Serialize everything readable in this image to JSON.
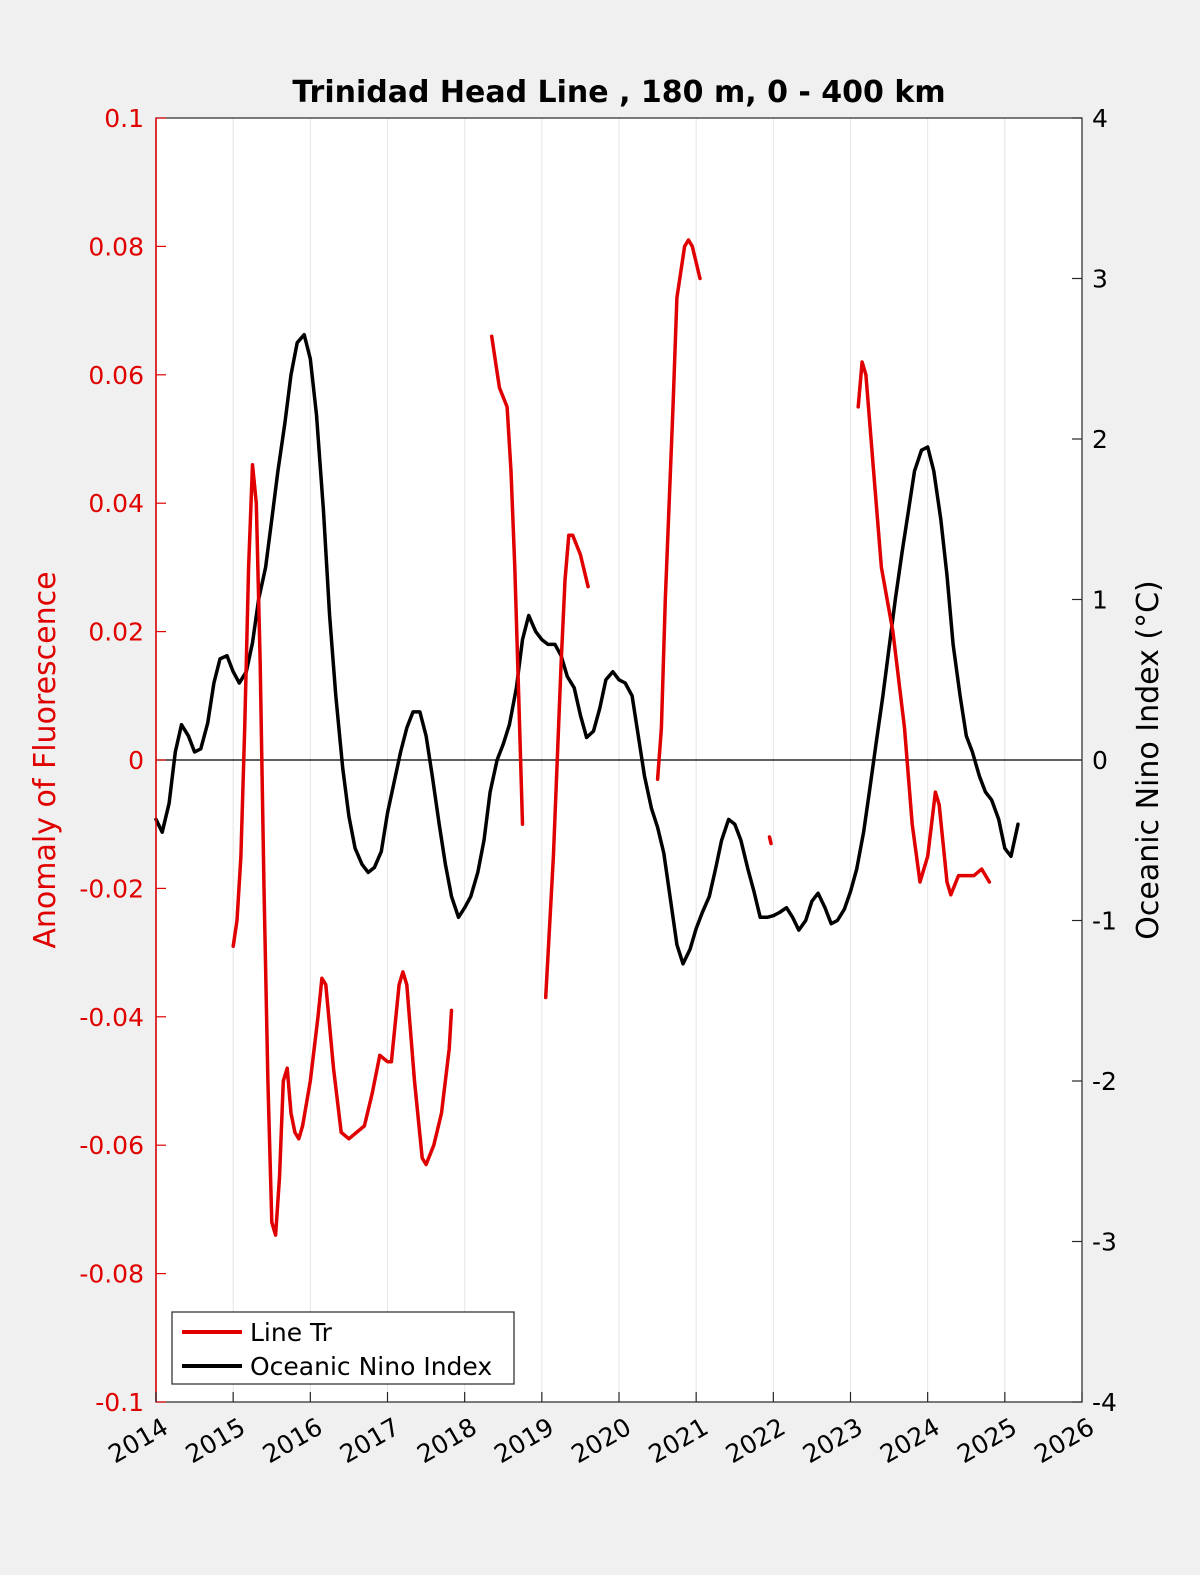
{
  "chart_data": {
    "type": "line",
    "title": "Trinidad Head Line , 180 m, 0 - 400 km",
    "ylabel_left": "Anomaly of Fluorescence",
    "ylabel_right": "Oceanic Nino Index (°C)",
    "xlim": [
      2014,
      2026
    ],
    "ylim_left": [
      -0.1,
      0.1
    ],
    "ylim_right": [
      -4,
      4
    ],
    "x_ticks": [
      "2014",
      "2015",
      "2016",
      "2017",
      "2018",
      "2019",
      "2020",
      "2021",
      "2022",
      "2023",
      "2024",
      "2025",
      "2026"
    ],
    "y_left_ticks": [
      "0.1",
      "0.08",
      "0.06",
      "0.04",
      "0.02",
      "0",
      "-0.02",
      "-0.04",
      "-0.06",
      "-0.08",
      "-0.1"
    ],
    "y_right_ticks": [
      "4",
      "3",
      "2",
      "1",
      "0",
      "-1",
      "-2",
      "-3",
      "-4"
    ],
    "grid": "x-only",
    "legend_position": "bottom-left",
    "colors": {
      "line_tr": "#e00000",
      "oni": "#000000",
      "axis_left": "#e00000"
    },
    "series": [
      {
        "name": "Line Tr",
        "axis": "left",
        "color": "#e00000",
        "segments": [
          [
            [
              2015.0,
              -0.029
            ],
            [
              2015.05,
              -0.025
            ],
            [
              2015.1,
              -0.015
            ],
            [
              2015.15,
              0.005
            ],
            [
              2015.2,
              0.03
            ],
            [
              2015.25,
              0.046
            ],
            [
              2015.3,
              0.04
            ],
            [
              2015.35,
              0.015
            ],
            [
              2015.4,
              -0.02
            ],
            [
              2015.45,
              -0.05
            ],
            [
              2015.5,
              -0.072
            ],
            [
              2015.55,
              -0.074
            ],
            [
              2015.6,
              -0.065
            ],
            [
              2015.65,
              -0.05
            ],
            [
              2015.7,
              -0.048
            ],
            [
              2015.75,
              -0.055
            ],
            [
              2015.8,
              -0.058
            ],
            [
              2015.85,
              -0.059
            ],
            [
              2015.9,
              -0.057
            ],
            [
              2016.0,
              -0.05
            ],
            [
              2016.1,
              -0.04
            ],
            [
              2016.15,
              -0.034
            ],
            [
              2016.2,
              -0.035
            ],
            [
              2016.3,
              -0.048
            ],
            [
              2016.4,
              -0.058
            ],
            [
              2016.5,
              -0.059
            ],
            [
              2016.6,
              -0.058
            ],
            [
              2016.7,
              -0.057
            ],
            [
              2016.8,
              -0.052
            ],
            [
              2016.9,
              -0.046
            ],
            [
              2017.0,
              -0.047
            ],
            [
              2017.05,
              -0.047
            ],
            [
              2017.15,
              -0.035
            ],
            [
              2017.2,
              -0.033
            ],
            [
              2017.25,
              -0.035
            ],
            [
              2017.35,
              -0.05
            ],
            [
              2017.45,
              -0.062
            ],
            [
              2017.5,
              -0.063
            ],
            [
              2017.6,
              -0.06
            ],
            [
              2017.7,
              -0.055
            ],
            [
              2017.8,
              -0.045
            ],
            [
              2017.83,
              -0.039
            ]
          ],
          [
            [
              2018.35,
              0.066
            ],
            [
              2018.45,
              0.058
            ],
            [
              2018.55,
              0.055
            ],
            [
              2018.6,
              0.045
            ],
            [
              2018.65,
              0.03
            ],
            [
              2018.7,
              0.01
            ],
            [
              2018.75,
              -0.01
            ]
          ],
          [
            [
              2019.05,
              -0.037
            ],
            [
              2019.15,
              -0.015
            ],
            [
              2019.25,
              0.015
            ],
            [
              2019.3,
              0.028
            ],
            [
              2019.35,
              0.035
            ],
            [
              2019.4,
              0.035
            ],
            [
              2019.5,
              0.032
            ],
            [
              2019.6,
              0.027
            ]
          ],
          [
            [
              2020.5,
              -0.003
            ],
            [
              2020.55,
              0.005
            ],
            [
              2020.6,
              0.025
            ],
            [
              2020.7,
              0.055
            ],
            [
              2020.75,
              0.072
            ],
            [
              2020.85,
              0.08
            ],
            [
              2020.9,
              0.081
            ],
            [
              2020.95,
              0.08
            ],
            [
              2021.05,
              0.075
            ]
          ],
          [
            [
              2021.95,
              -0.012
            ],
            [
              2021.97,
              -0.013
            ]
          ],
          [
            [
              2023.1,
              0.055
            ],
            [
              2023.15,
              0.062
            ],
            [
              2023.2,
              0.06
            ],
            [
              2023.3,
              0.045
            ],
            [
              2023.4,
              0.03
            ],
            [
              2023.55,
              0.02
            ],
            [
              2023.7,
              0.005
            ],
            [
              2023.8,
              -0.01
            ],
            [
              2023.9,
              -0.019
            ],
            [
              2024.0,
              -0.015
            ],
            [
              2024.1,
              -0.005
            ],
            [
              2024.15,
              -0.007
            ],
            [
              2024.25,
              -0.019
            ],
            [
              2024.3,
              -0.021
            ],
            [
              2024.4,
              -0.018
            ],
            [
              2024.5,
              -0.018
            ],
            [
              2024.6,
              -0.018
            ],
            [
              2024.7,
              -0.017
            ],
            [
              2024.8,
              -0.019
            ]
          ]
        ]
      },
      {
        "name": "Oceanic Nino Index",
        "axis": "right",
        "color": "#000000",
        "segments": [
          [
            [
              2014.0,
              -0.37
            ],
            [
              2014.08,
              -0.45
            ],
            [
              2014.17,
              -0.27
            ],
            [
              2014.25,
              0.05
            ],
            [
              2014.33,
              0.22
            ],
            [
              2014.42,
              0.15
            ],
            [
              2014.5,
              0.05
            ],
            [
              2014.58,
              0.07
            ],
            [
              2014.67,
              0.23
            ],
            [
              2014.75,
              0.48
            ],
            [
              2014.83,
              0.63
            ],
            [
              2014.92,
              0.65
            ],
            [
              2015.0,
              0.55
            ],
            [
              2015.08,
              0.48
            ],
            [
              2015.17,
              0.55
            ],
            [
              2015.25,
              0.73
            ],
            [
              2015.33,
              1.0
            ],
            [
              2015.42,
              1.2
            ],
            [
              2015.5,
              1.5
            ],
            [
              2015.58,
              1.8
            ],
            [
              2015.67,
              2.1
            ],
            [
              2015.75,
              2.4
            ],
            [
              2015.83,
              2.6
            ],
            [
              2015.92,
              2.65
            ],
            [
              2016.0,
              2.5
            ],
            [
              2016.08,
              2.15
            ],
            [
              2016.17,
              1.55
            ],
            [
              2016.25,
              0.9
            ],
            [
              2016.33,
              0.4
            ],
            [
              2016.42,
              -0.05
            ],
            [
              2016.5,
              -0.35
            ],
            [
              2016.58,
              -0.55
            ],
            [
              2016.67,
              -0.65
            ],
            [
              2016.75,
              -0.7
            ],
            [
              2016.83,
              -0.67
            ],
            [
              2016.92,
              -0.57
            ],
            [
              2017.0,
              -0.33
            ],
            [
              2017.08,
              -0.15
            ],
            [
              2017.17,
              0.05
            ],
            [
              2017.25,
              0.2
            ],
            [
              2017.33,
              0.3
            ],
            [
              2017.42,
              0.3
            ],
            [
              2017.5,
              0.15
            ],
            [
              2017.58,
              -0.1
            ],
            [
              2017.67,
              -0.4
            ],
            [
              2017.75,
              -0.65
            ],
            [
              2017.83,
              -0.85
            ],
            [
              2017.92,
              -0.98
            ],
            [
              2018.0,
              -0.92
            ],
            [
              2018.08,
              -0.85
            ],
            [
              2018.17,
              -0.7
            ],
            [
              2018.25,
              -0.5
            ],
            [
              2018.33,
              -0.2
            ],
            [
              2018.42,
              0.0
            ],
            [
              2018.5,
              0.1
            ],
            [
              2018.58,
              0.22
            ],
            [
              2018.67,
              0.45
            ],
            [
              2018.75,
              0.75
            ],
            [
              2018.83,
              0.9
            ],
            [
              2018.92,
              0.8
            ],
            [
              2019.0,
              0.75
            ],
            [
              2019.08,
              0.72
            ],
            [
              2019.17,
              0.72
            ],
            [
              2019.25,
              0.65
            ],
            [
              2019.33,
              0.52
            ],
            [
              2019.42,
              0.45
            ],
            [
              2019.5,
              0.28
            ],
            [
              2019.58,
              0.14
            ],
            [
              2019.67,
              0.18
            ],
            [
              2019.75,
              0.32
            ],
            [
              2019.83,
              0.5
            ],
            [
              2019.92,
              0.55
            ],
            [
              2020.0,
              0.5
            ],
            [
              2020.08,
              0.48
            ],
            [
              2020.17,
              0.4
            ],
            [
              2020.25,
              0.15
            ],
            [
              2020.33,
              -0.1
            ],
            [
              2020.42,
              -0.3
            ],
            [
              2020.5,
              -0.42
            ],
            [
              2020.58,
              -0.58
            ],
            [
              2020.67,
              -0.88
            ],
            [
              2020.75,
              -1.15
            ],
            [
              2020.83,
              -1.27
            ],
            [
              2020.92,
              -1.18
            ],
            [
              2021.0,
              -1.05
            ],
            [
              2021.08,
              -0.95
            ],
            [
              2021.17,
              -0.85
            ],
            [
              2021.25,
              -0.68
            ],
            [
              2021.33,
              -0.5
            ],
            [
              2021.42,
              -0.37
            ],
            [
              2021.5,
              -0.4
            ],
            [
              2021.58,
              -0.5
            ],
            [
              2021.67,
              -0.68
            ],
            [
              2021.75,
              -0.82
            ],
            [
              2021.83,
              -0.98
            ],
            [
              2021.92,
              -0.98
            ],
            [
              2022.0,
              -0.97
            ],
            [
              2022.08,
              -0.95
            ],
            [
              2022.17,
              -0.92
            ],
            [
              2022.25,
              -0.98
            ],
            [
              2022.33,
              -1.06
            ],
            [
              2022.42,
              -1.0
            ],
            [
              2022.5,
              -0.88
            ],
            [
              2022.58,
              -0.83
            ],
            [
              2022.67,
              -0.92
            ],
            [
              2022.75,
              -1.02
            ],
            [
              2022.83,
              -1.0
            ],
            [
              2022.92,
              -0.93
            ],
            [
              2023.0,
              -0.82
            ],
            [
              2023.08,
              -0.68
            ],
            [
              2023.17,
              -0.45
            ],
            [
              2023.25,
              -0.18
            ],
            [
              2023.33,
              0.1
            ],
            [
              2023.42,
              0.4
            ],
            [
              2023.5,
              0.7
            ],
            [
              2023.58,
              1.0
            ],
            [
              2023.67,
              1.3
            ],
            [
              2023.75,
              1.55
            ],
            [
              2023.83,
              1.8
            ],
            [
              2023.92,
              1.93
            ],
            [
              2024.0,
              1.95
            ],
            [
              2024.08,
              1.8
            ],
            [
              2024.17,
              1.5
            ],
            [
              2024.25,
              1.15
            ],
            [
              2024.33,
              0.72
            ],
            [
              2024.42,
              0.4
            ],
            [
              2024.5,
              0.15
            ],
            [
              2024.58,
              0.05
            ],
            [
              2024.67,
              -0.1
            ],
            [
              2024.75,
              -0.2
            ],
            [
              2024.83,
              -0.25
            ],
            [
              2024.92,
              -0.37
            ],
            [
              2025.0,
              -0.55
            ],
            [
              2025.08,
              -0.6
            ],
            [
              2025.17,
              -0.4
            ]
          ]
        ]
      }
    ]
  }
}
